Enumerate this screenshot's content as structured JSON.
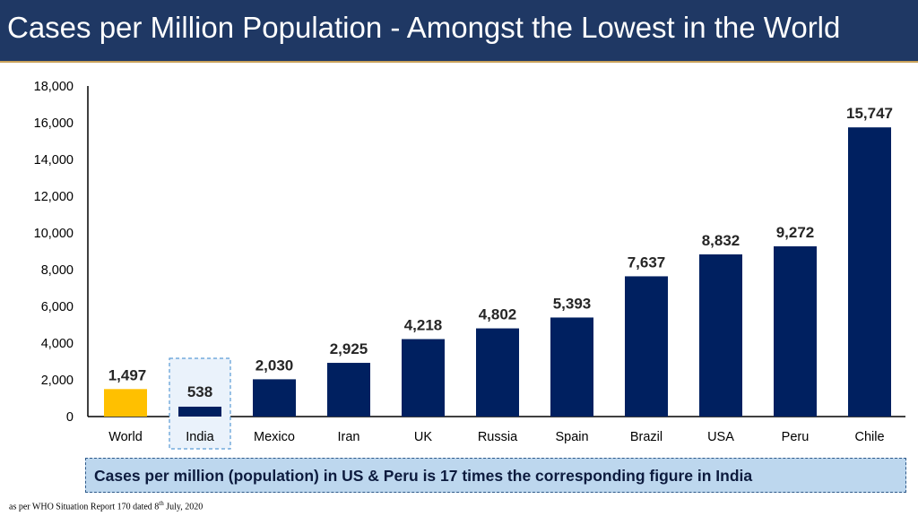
{
  "header": {
    "title": "Cases per Million Population - Amongst the Lowest in the World"
  },
  "chart_data": {
    "type": "bar",
    "title": "",
    "xlabel": "",
    "ylabel": "",
    "ylim": [
      0,
      18000
    ],
    "yticks": [
      0,
      2000,
      4000,
      6000,
      8000,
      10000,
      12000,
      14000,
      16000,
      18000
    ],
    "ytick_labels": [
      "0",
      "2,000",
      "4,000",
      "6,000",
      "8,000",
      "10,000",
      "12,000",
      "14,000",
      "16,000",
      "18,000"
    ],
    "categories": [
      "World",
      "India",
      "Mexico",
      "Iran",
      "UK",
      "Russia",
      "Spain",
      "Brazil",
      "USA",
      "Peru",
      "Chile"
    ],
    "values": [
      1497,
      538,
      2030,
      2925,
      4218,
      4802,
      5393,
      7637,
      8832,
      9272,
      15747
    ],
    "value_labels": [
      "1,497",
      "538",
      "2,030",
      "2,925",
      "4,218",
      "4,802",
      "5,393",
      "7,637",
      "8,832",
      "9,272",
      "15,747"
    ],
    "bar_colors": [
      "#ffc000",
      "#002060",
      "#002060",
      "#002060",
      "#002060",
      "#002060",
      "#002060",
      "#002060",
      "#002060",
      "#002060",
      "#002060"
    ],
    "highlighted_category": "India",
    "grid": false
  },
  "callout": {
    "text": "Cases per million (population) in US & Peru is 17 times the corresponding figure in India"
  },
  "footnote": {
    "prefix": "as per WHO Situation Report 170 dated 8",
    "sup": "th",
    "suffix": " July, 2020"
  },
  "colors": {
    "title_bg": "#1f3864",
    "bar_default": "#002060",
    "bar_world": "#ffc000",
    "callout_bg": "#bdd7ee"
  }
}
